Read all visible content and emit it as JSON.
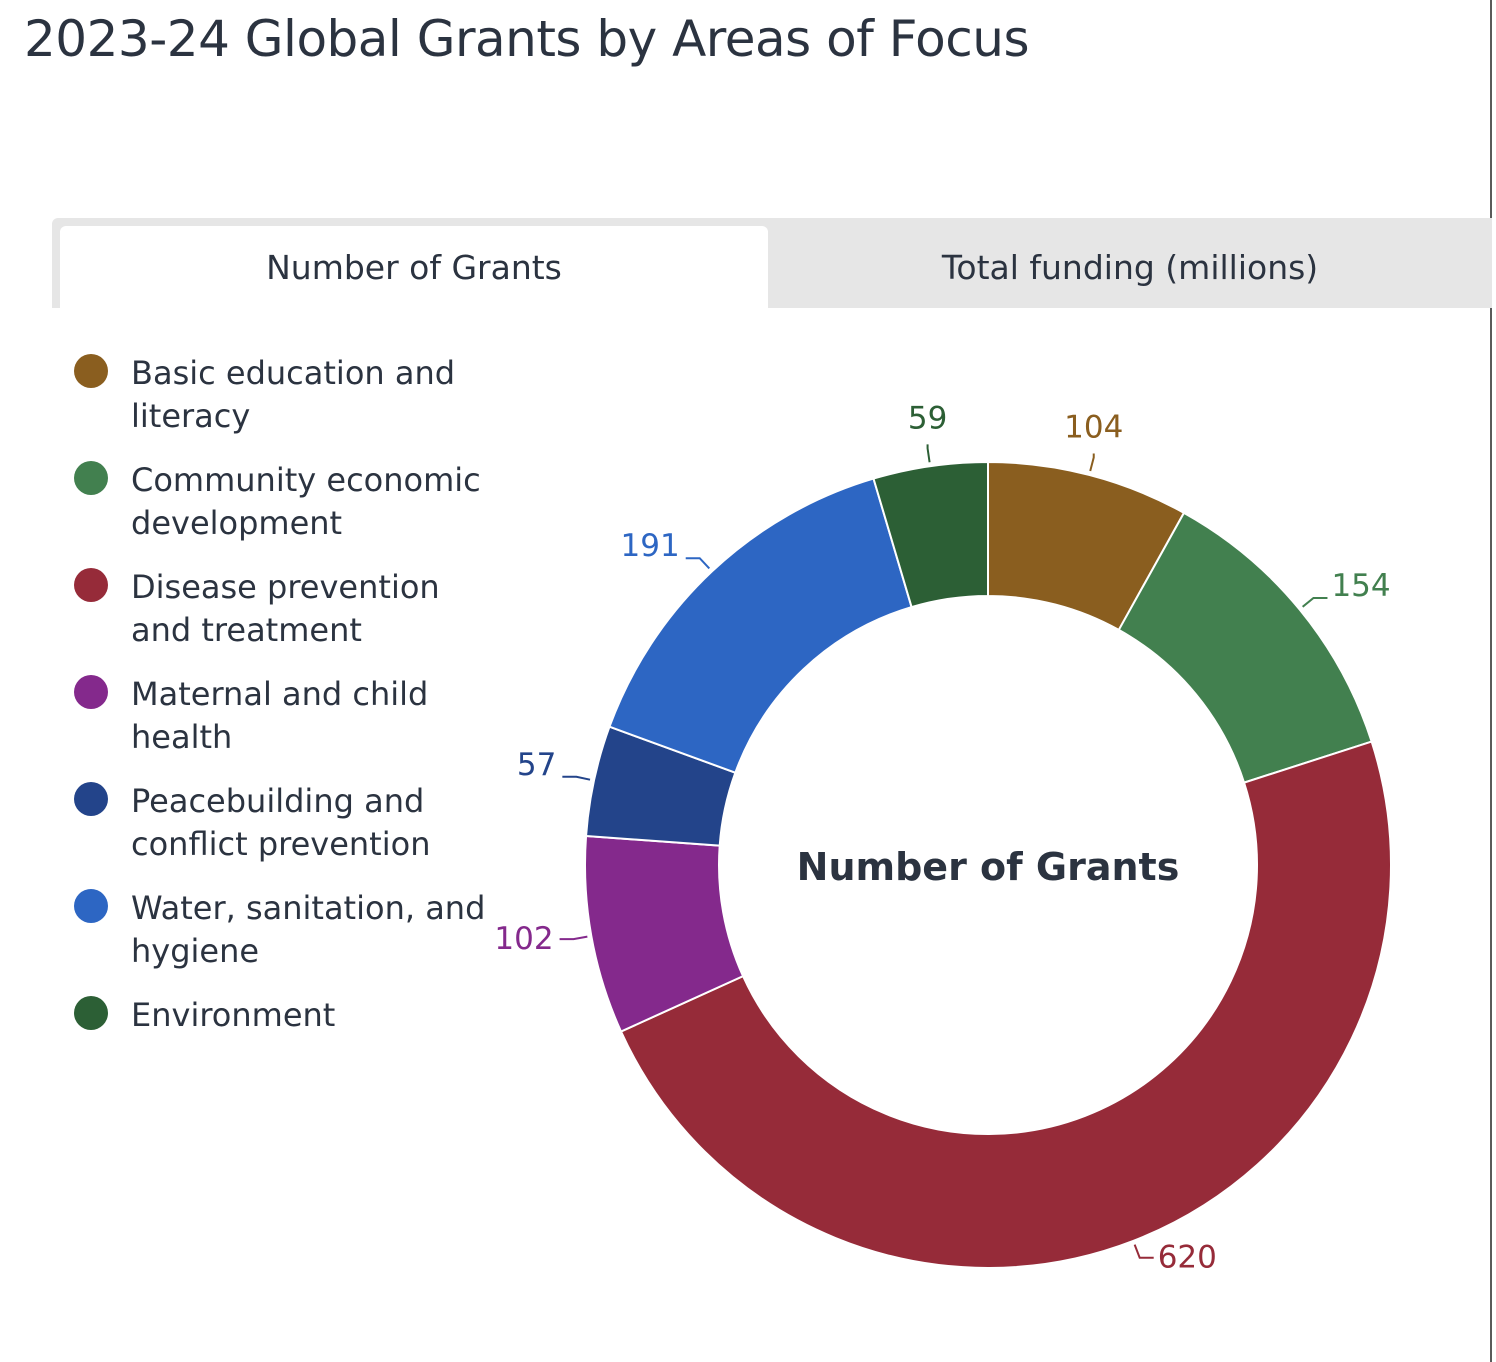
{
  "page": {
    "title": "2023-24 Global Grants by Areas of Focus"
  },
  "tabs": [
    {
      "label": "Number of Grants",
      "active": true
    },
    {
      "label": "Total funding (millions)",
      "active": false
    }
  ],
  "chart_data": {
    "type": "pie",
    "variant": "donut",
    "center_label": "Number of Grants",
    "legend_position": "left",
    "categories": [
      "Basic education and literacy",
      "Community economic development",
      "Disease prevention and treatment",
      "Maternal and child health",
      "Peacebuilding and conflict prevention",
      "Water, sanitation, and hygiene",
      "Environment"
    ],
    "values": [
      104,
      154,
      620,
      102,
      57,
      191,
      59
    ],
    "data_labels": [
      "104",
      "154",
      "620",
      "102",
      "57",
      "191",
      "59"
    ],
    "colors": [
      "#8a5e1f",
      "#42804f",
      "#962b39",
      "#84298c",
      "#23448a",
      "#2d66c3",
      "#2c5f35"
    ]
  }
}
